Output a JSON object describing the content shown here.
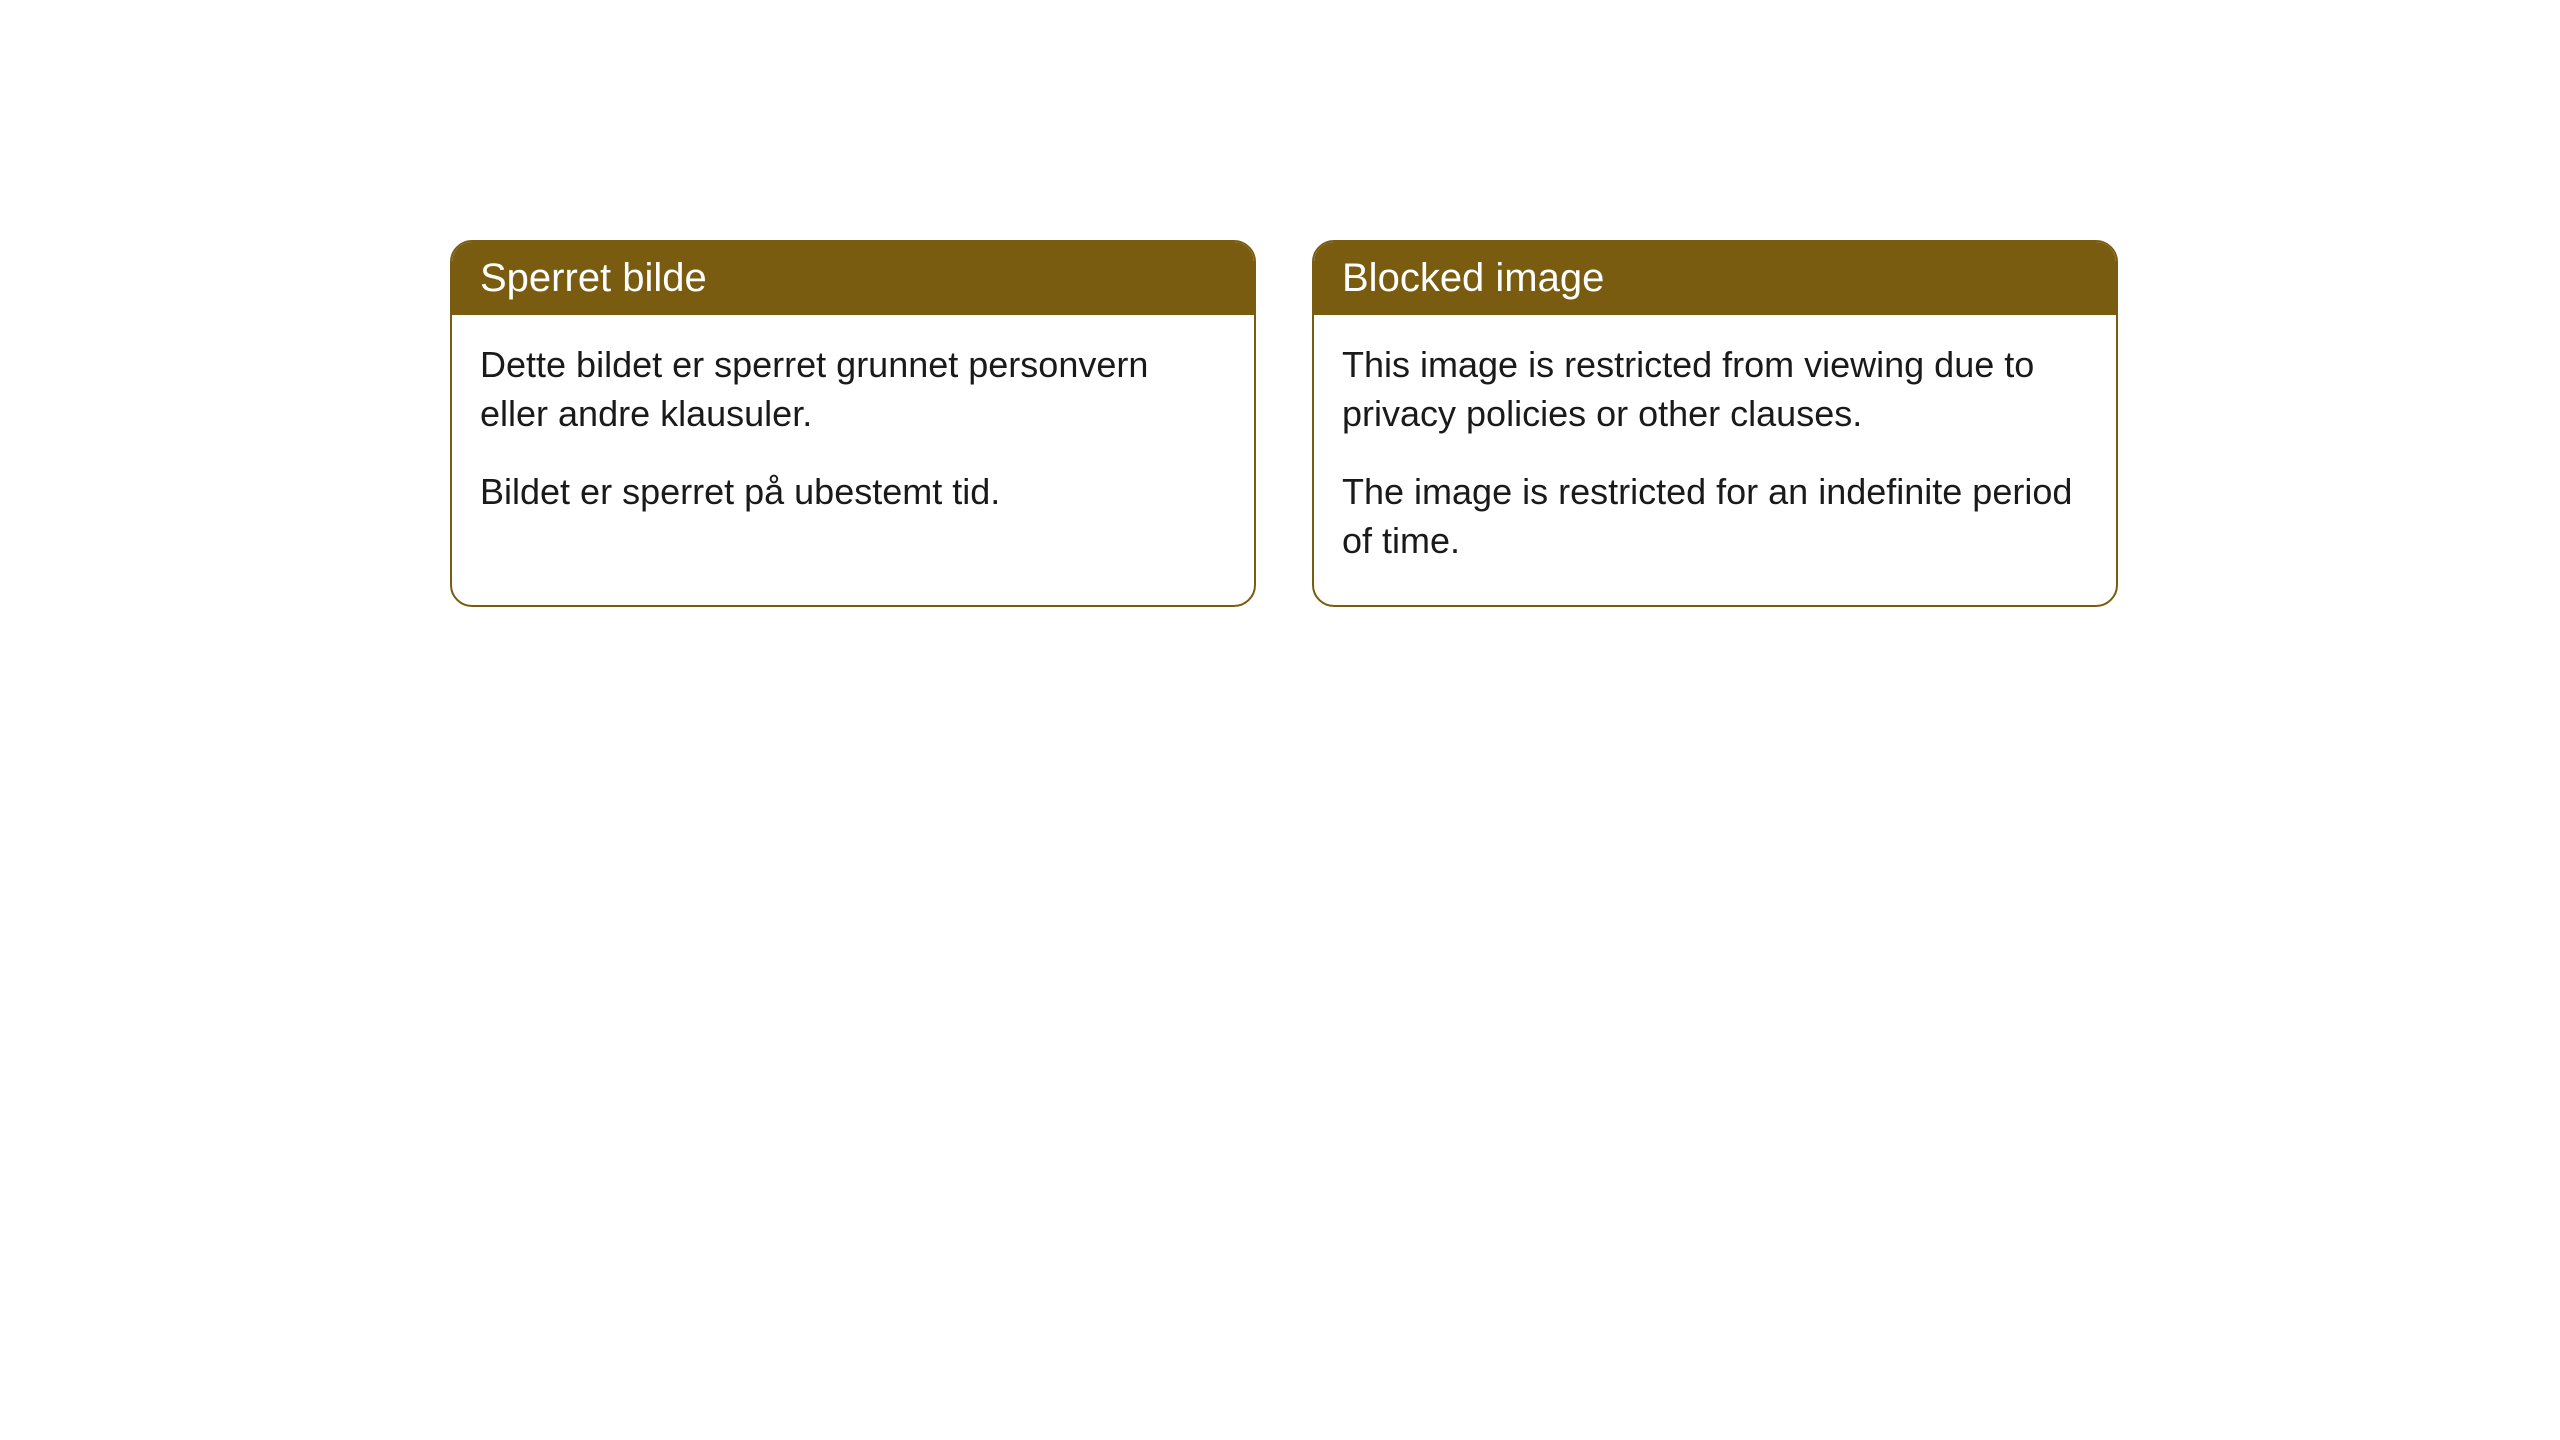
{
  "cards": [
    {
      "title": "Sperret bilde",
      "paragraph1": "Dette bildet er sperret grunnet personvern eller andre klausuler.",
      "paragraph2": "Bildet er sperret på ubestemt tid."
    },
    {
      "title": "Blocked image",
      "paragraph1": "This image is restricted from viewing due to privacy policies or other clauses.",
      "paragraph2": "The image is restricted for an indefinite period of time."
    }
  ],
  "style": {
    "header_background": "#7a5c10",
    "header_text_color": "#ffffff",
    "border_color": "#7a5c10",
    "body_background": "#ffffff",
    "body_text_color": "#1a1a1a",
    "border_radius": 22,
    "header_fontsize": 40,
    "body_fontsize": 36
  }
}
